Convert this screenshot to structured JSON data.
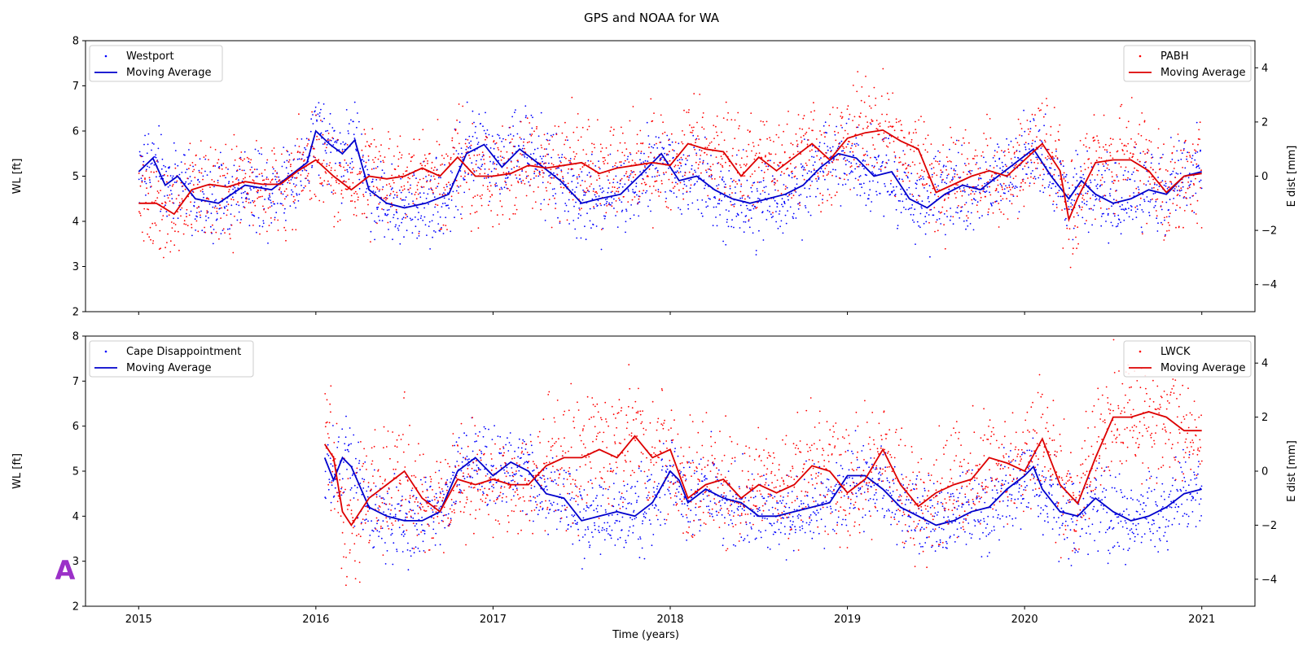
{
  "figure": {
    "title": "GPS and NOAA for WA",
    "xlabel": "Time (years)",
    "badge": "A"
  },
  "chart_data": [
    {
      "type": "scatter",
      "xlim": [
        2014.7,
        2021.3
      ],
      "xticks": [
        2015,
        2016,
        2017,
        2018,
        2019,
        2020,
        2021
      ],
      "ylabel": "WL [ft]",
      "ylim": [
        2,
        8
      ],
      "yticks": [
        2,
        3,
        4,
        5,
        6,
        7,
        8
      ],
      "ylabel_right": "E dist [mm]",
      "ylim_right": [
        -5,
        5
      ],
      "yticks_right": [
        -4,
        -2,
        0,
        2,
        4
      ],
      "grid": false,
      "legend_left": [
        "Westport",
        "Moving Average"
      ],
      "legend_right": [
        "PABH",
        "Moving Average"
      ],
      "series": [
        {
          "name": "Westport",
          "axis": "left",
          "color": "#0000ff",
          "scatter_spread": 0.45,
          "moving_average": {
            "name": "Moving Average",
            "color": "#0000cc",
            "x": [
              2015.0,
              2015.08,
              2015.15,
              2015.22,
              2015.32,
              2015.45,
              2015.6,
              2015.75,
              2015.85,
              2015.95,
              2016.0,
              2016.08,
              2016.15,
              2016.22,
              2016.3,
              2016.4,
              2016.5,
              2016.62,
              2016.75,
              2016.85,
              2016.95,
              2017.05,
              2017.15,
              2017.25,
              2017.38,
              2017.5,
              2017.6,
              2017.72,
              2017.85,
              2017.95,
              2018.05,
              2018.15,
              2018.25,
              2018.35,
              2018.45,
              2018.55,
              2018.65,
              2018.75,
              2018.85,
              2018.95,
              2019.05,
              2019.15,
              2019.25,
              2019.35,
              2019.45,
              2019.55,
              2019.65,
              2019.75,
              2019.85,
              2019.95,
              2020.05,
              2020.15,
              2020.25,
              2020.32,
              2020.4,
              2020.5,
              2020.6,
              2020.7,
              2020.8,
              2020.9,
              2021.0
            ],
            "y": [
              5.1,
              5.4,
              4.8,
              5.0,
              4.5,
              4.4,
              4.8,
              4.7,
              5.0,
              5.3,
              6.0,
              5.7,
              5.5,
              5.8,
              4.7,
              4.4,
              4.3,
              4.4,
              4.6,
              5.5,
              5.7,
              5.2,
              5.6,
              5.3,
              4.9,
              4.4,
              4.5,
              4.6,
              5.1,
              5.5,
              4.9,
              5.0,
              4.7,
              4.5,
              4.4,
              4.5,
              4.6,
              4.8,
              5.2,
              5.5,
              5.4,
              5.0,
              5.1,
              4.5,
              4.3,
              4.6,
              4.8,
              4.7,
              5.0,
              5.3,
              5.6,
              5.0,
              4.5,
              4.9,
              4.6,
              4.4,
              4.5,
              4.7,
              4.6,
              5.0,
              5.1
            ]
          }
        },
        {
          "name": "PABH",
          "axis": "right",
          "color": "#ff0000",
          "scatter_spread": 0.9,
          "moving_average": {
            "name": "Moving Average",
            "color": "#dd0000",
            "x": [
              2015.0,
              2015.1,
              2015.2,
              2015.3,
              2015.4,
              2015.5,
              2015.6,
              2015.7,
              2015.8,
              2015.9,
              2016.0,
              2016.1,
              2016.2,
              2016.3,
              2016.4,
              2016.5,
              2016.6,
              2016.7,
              2016.8,
              2016.9,
              2017.0,
              2017.1,
              2017.2,
              2017.3,
              2017.4,
              2017.5,
              2017.6,
              2017.7,
              2017.8,
              2017.9,
              2018.0,
              2018.1,
              2018.2,
              2018.3,
              2018.4,
              2018.5,
              2018.6,
              2018.7,
              2018.8,
              2018.9,
              2019.0,
              2019.1,
              2019.2,
              2019.3,
              2019.4,
              2019.5,
              2019.6,
              2019.7,
              2019.8,
              2019.9,
              2020.0,
              2020.1,
              2020.2,
              2020.25,
              2020.3,
              2020.4,
              2020.5,
              2020.6,
              2020.7,
              2020.8,
              2020.9,
              2021.0
            ],
            "y": [
              -1.0,
              -1.0,
              -1.4,
              -0.5,
              -0.3,
              -0.4,
              -0.2,
              -0.3,
              -0.3,
              0.2,
              0.6,
              0.0,
              -0.5,
              0.0,
              -0.1,
              0.0,
              0.3,
              0.0,
              0.7,
              0.0,
              0.0,
              0.1,
              0.4,
              0.3,
              0.4,
              0.5,
              0.1,
              0.3,
              0.4,
              0.5,
              0.4,
              1.2,
              1.0,
              0.9,
              0.0,
              0.7,
              0.2,
              0.7,
              1.2,
              0.6,
              1.4,
              1.6,
              1.7,
              1.3,
              1.0,
              -0.6,
              -0.3,
              0.0,
              0.2,
              0.0,
              0.6,
              1.2,
              0.2,
              -1.6,
              -0.8,
              0.5,
              0.6,
              0.6,
              0.2,
              -0.6,
              0.0,
              0.1
            ]
          }
        }
      ]
    },
    {
      "type": "scatter",
      "xlim": [
        2014.7,
        2021.3
      ],
      "xticks": [
        2015,
        2016,
        2017,
        2018,
        2019,
        2020,
        2021
      ],
      "xticklabels": [
        "2015",
        "2016",
        "2017",
        "2018",
        "2019",
        "2020",
        "2021"
      ],
      "xlabel": "Time (years)",
      "ylabel": "WL [ft]",
      "ylim": [
        2,
        8
      ],
      "yticks": [
        2,
        3,
        4,
        5,
        6,
        7,
        8
      ],
      "ylabel_right": "E dist [mm]",
      "ylim_right": [
        -5,
        5
      ],
      "yticks_right": [
        -4,
        -2,
        0,
        2,
        4
      ],
      "grid": false,
      "legend_left": [
        "Cape Disappointment",
        "Moving Average"
      ],
      "legend_right": [
        "LWCK",
        "Moving Average"
      ],
      "series": [
        {
          "name": "Cape Disappointment",
          "axis": "left",
          "color": "#0000ff",
          "scatter_spread": 0.45,
          "moving_average": {
            "name": "Moving Average",
            "color": "#0000cc",
            "x": [
              2016.05,
              2016.1,
              2016.15,
              2016.2,
              2016.3,
              2016.4,
              2016.5,
              2016.6,
              2016.7,
              2016.8,
              2016.9,
              2017.0,
              2017.1,
              2017.2,
              2017.3,
              2017.4,
              2017.5,
              2017.6,
              2017.7,
              2017.8,
              2017.9,
              2018.0,
              2018.05,
              2018.1,
              2018.2,
              2018.3,
              2018.4,
              2018.5,
              2018.6,
              2018.7,
              2018.8,
              2018.9,
              2019.0,
              2019.1,
              2019.2,
              2019.3,
              2019.4,
              2019.5,
              2019.6,
              2019.7,
              2019.8,
              2019.9,
              2020.0,
              2020.05,
              2020.1,
              2020.2,
              2020.3,
              2020.4,
              2020.5,
              2020.6,
              2020.7,
              2020.8,
              2020.9,
              2021.0
            ],
            "y": [
              5.3,
              4.8,
              5.3,
              5.1,
              4.2,
              4.0,
              3.9,
              3.9,
              4.1,
              5.0,
              5.3,
              4.9,
              5.2,
              5.0,
              4.5,
              4.4,
              3.9,
              4.0,
              4.1,
              4.0,
              4.3,
              5.0,
              4.8,
              4.3,
              4.6,
              4.4,
              4.3,
              4.0,
              4.0,
              4.1,
              4.2,
              4.3,
              4.9,
              4.9,
              4.6,
              4.2,
              4.0,
              3.8,
              3.9,
              4.1,
              4.2,
              4.6,
              4.9,
              5.1,
              4.6,
              4.1,
              4.0,
              4.4,
              4.1,
              3.9,
              4.0,
              4.2,
              4.5,
              4.6
            ]
          }
        },
        {
          "name": "LWCK",
          "axis": "right",
          "color": "#ff0000",
          "scatter_spread": 1.1,
          "moving_average": {
            "name": "Moving Average",
            "color": "#dd0000",
            "x": [
              2016.05,
              2016.1,
              2016.15,
              2016.2,
              2016.3,
              2016.4,
              2016.5,
              2016.6,
              2016.7,
              2016.8,
              2016.9,
              2017.0,
              2017.1,
              2017.2,
              2017.3,
              2017.4,
              2017.5,
              2017.6,
              2017.7,
              2017.8,
              2017.9,
              2018.0,
              2018.1,
              2018.2,
              2018.3,
              2018.4,
              2018.5,
              2018.6,
              2018.7,
              2018.8,
              2018.9,
              2019.0,
              2019.1,
              2019.2,
              2019.3,
              2019.4,
              2019.5,
              2019.6,
              2019.7,
              2019.8,
              2019.9,
              2020.0,
              2020.1,
              2020.2,
              2020.3,
              2020.4,
              2020.5,
              2020.6,
              2020.7,
              2020.8,
              2020.9,
              2021.0
            ],
            "y": [
              1.0,
              0.5,
              -1.5,
              -2.0,
              -1.0,
              -0.5,
              0.0,
              -1.0,
              -1.5,
              -0.3,
              -0.5,
              -0.3,
              -0.5,
              -0.5,
              0.2,
              0.5,
              0.5,
              0.8,
              0.5,
              1.3,
              0.5,
              0.8,
              -1.0,
              -0.5,
              -0.3,
              -1.0,
              -0.5,
              -0.8,
              -0.5,
              0.2,
              0.0,
              -0.8,
              -0.3,
              0.8,
              -0.5,
              -1.3,
              -0.8,
              -0.5,
              -0.3,
              0.5,
              0.3,
              0.0,
              1.2,
              -0.5,
              -1.2,
              0.5,
              2.0,
              2.0,
              2.2,
              2.0,
              1.5,
              1.5
            ]
          }
        }
      ]
    }
  ]
}
